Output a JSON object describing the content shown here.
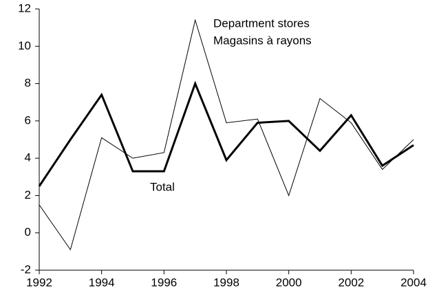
{
  "chart_data": {
    "type": "line",
    "x": [
      1992,
      1993,
      1994,
      1995,
      1996,
      1997,
      1998,
      1999,
      2000,
      2001,
      2002,
      2003,
      2004
    ],
    "series": [
      {
        "name": "Total",
        "color": "#000000",
        "line_width": 3,
        "values": [
          2.5,
          5.0,
          7.4,
          3.3,
          3.3,
          8.0,
          3.9,
          5.9,
          6.0,
          4.4,
          6.3,
          3.6,
          4.7
        ]
      },
      {
        "name": "Department stores",
        "color": "#000000",
        "line_width": 1,
        "values": [
          1.5,
          -0.9,
          5.1,
          4.0,
          4.3,
          11.4,
          5.9,
          6.1,
          2.0,
          7.2,
          5.9,
          3.4,
          5.0
        ]
      }
    ],
    "annotations": [
      "Magasins à rayons"
    ],
    "xlim": [
      1992,
      2004
    ],
    "xticks": [
      1992,
      1994,
      1996,
      1998,
      2000,
      2002,
      2004
    ],
    "ylim": [
      -2,
      12
    ],
    "yticks": [
      -2,
      0,
      2,
      4,
      6,
      8,
      10,
      12
    ],
    "grid": false
  }
}
